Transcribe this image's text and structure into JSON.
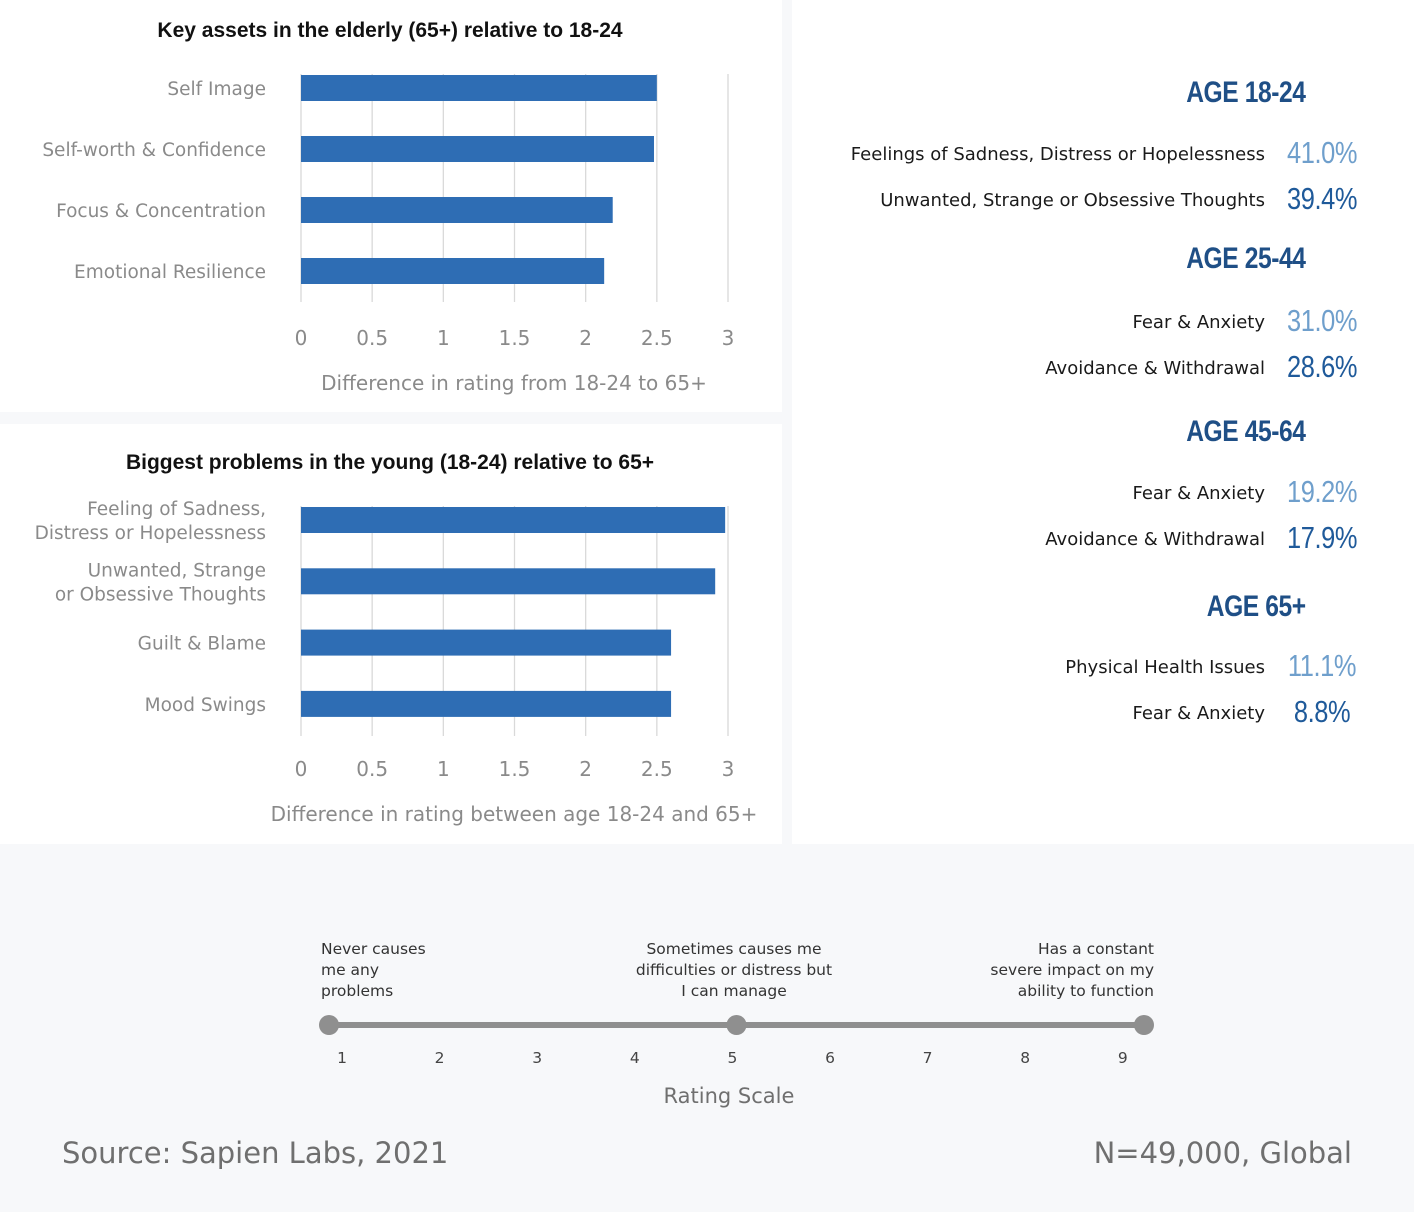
{
  "chart_data": [
    {
      "type": "bar",
      "orientation": "horizontal",
      "title": "Key assets in the elderly (65+) relative to 18-24",
      "categories": [
        [
          "Self Image"
        ],
        [
          "Self-worth & Confidence"
        ],
        [
          "Focus & Concentration"
        ],
        [
          "Emotional Resilience"
        ]
      ],
      "values": [
        2.5,
        2.48,
        2.19,
        2.13
      ],
      "xlabel": "Difference in rating from 18-24 to 65+",
      "xlim": [
        0,
        3
      ],
      "ticks": [
        "0",
        "0.5",
        "1",
        "1.5",
        "2",
        "2.5",
        "3"
      ],
      "grid": true,
      "color": "#2e6db4"
    },
    {
      "type": "bar",
      "orientation": "horizontal",
      "title": "Biggest problems in the young (18-24) relative to 65+",
      "categories": [
        [
          "Feeling of Sadness,",
          "Distress or Hopelessness"
        ],
        [
          "Unwanted, Strange",
          "or Obsessive Thoughts"
        ],
        [
          "Guilt & Blame"
        ],
        [
          "Mood Swings"
        ]
      ],
      "values": [
        2.98,
        2.91,
        2.6,
        2.6
      ],
      "xlabel": "Difference in rating between age 18-24 and 65+",
      "xlim": [
        0,
        3
      ],
      "ticks": [
        "0",
        "0.5",
        "1",
        "1.5",
        "2",
        "2.5",
        "3"
      ],
      "grid": true,
      "color": "#2e6db4"
    }
  ],
  "age_groups": [
    {
      "title": "AGE 18-24",
      "rows": [
        {
          "label": "Feelings of Sadness, Distress or Hopelessness",
          "value": "41.0%",
          "color": "#6f9fcc"
        },
        {
          "label": "Unwanted, Strange or Obsessive Thoughts",
          "value": "39.4%",
          "color": "#1f5a9a"
        }
      ]
    },
    {
      "title": "AGE 25-44",
      "rows": [
        {
          "label": "Fear & Anxiety",
          "value": "31.0%",
          "color": "#6f9fcc"
        },
        {
          "label": "Avoidance & Withdrawal",
          "value": "28.6%",
          "color": "#1f5a9a"
        }
      ]
    },
    {
      "title": "AGE 45-64",
      "rows": [
        {
          "label": "Fear & Anxiety",
          "value": "19.2%",
          "color": "#6f9fcc"
        },
        {
          "label": "Avoidance & Withdrawal",
          "value": "17.9%",
          "color": "#1f5a9a"
        }
      ]
    },
    {
      "title": "AGE 65+",
      "rows": [
        {
          "label": "Physical Health Issues",
          "value": "11.1%",
          "color": "#6f9fcc"
        },
        {
          "label": "Fear & Anxiety",
          "value": "8.8%",
          "color": "#1f5a9a"
        }
      ]
    }
  ],
  "rating_scale": {
    "title": "Rating Scale",
    "ticks": [
      "1",
      "2",
      "3",
      "4",
      "5",
      "6",
      "7",
      "8",
      "9"
    ],
    "markers": [
      1,
      5,
      9
    ],
    "anchors": [
      {
        "lines": [
          "Never causes",
          "me any",
          "problems"
        ]
      },
      {
        "lines": [
          "Sometimes causes me",
          "difficulties or distress but",
          "I can manage"
        ]
      },
      {
        "lines": [
          "Has a constant",
          "severe impact on my",
          "ability to function"
        ]
      }
    ]
  },
  "footer": {
    "source": "Source: Sapien Labs, 2021",
    "sample": "N=49,000, Global"
  },
  "colors": {
    "bar": "#2e6db4",
    "age_title": "#1f4f86",
    "scale_line": "#8f8f8f"
  }
}
